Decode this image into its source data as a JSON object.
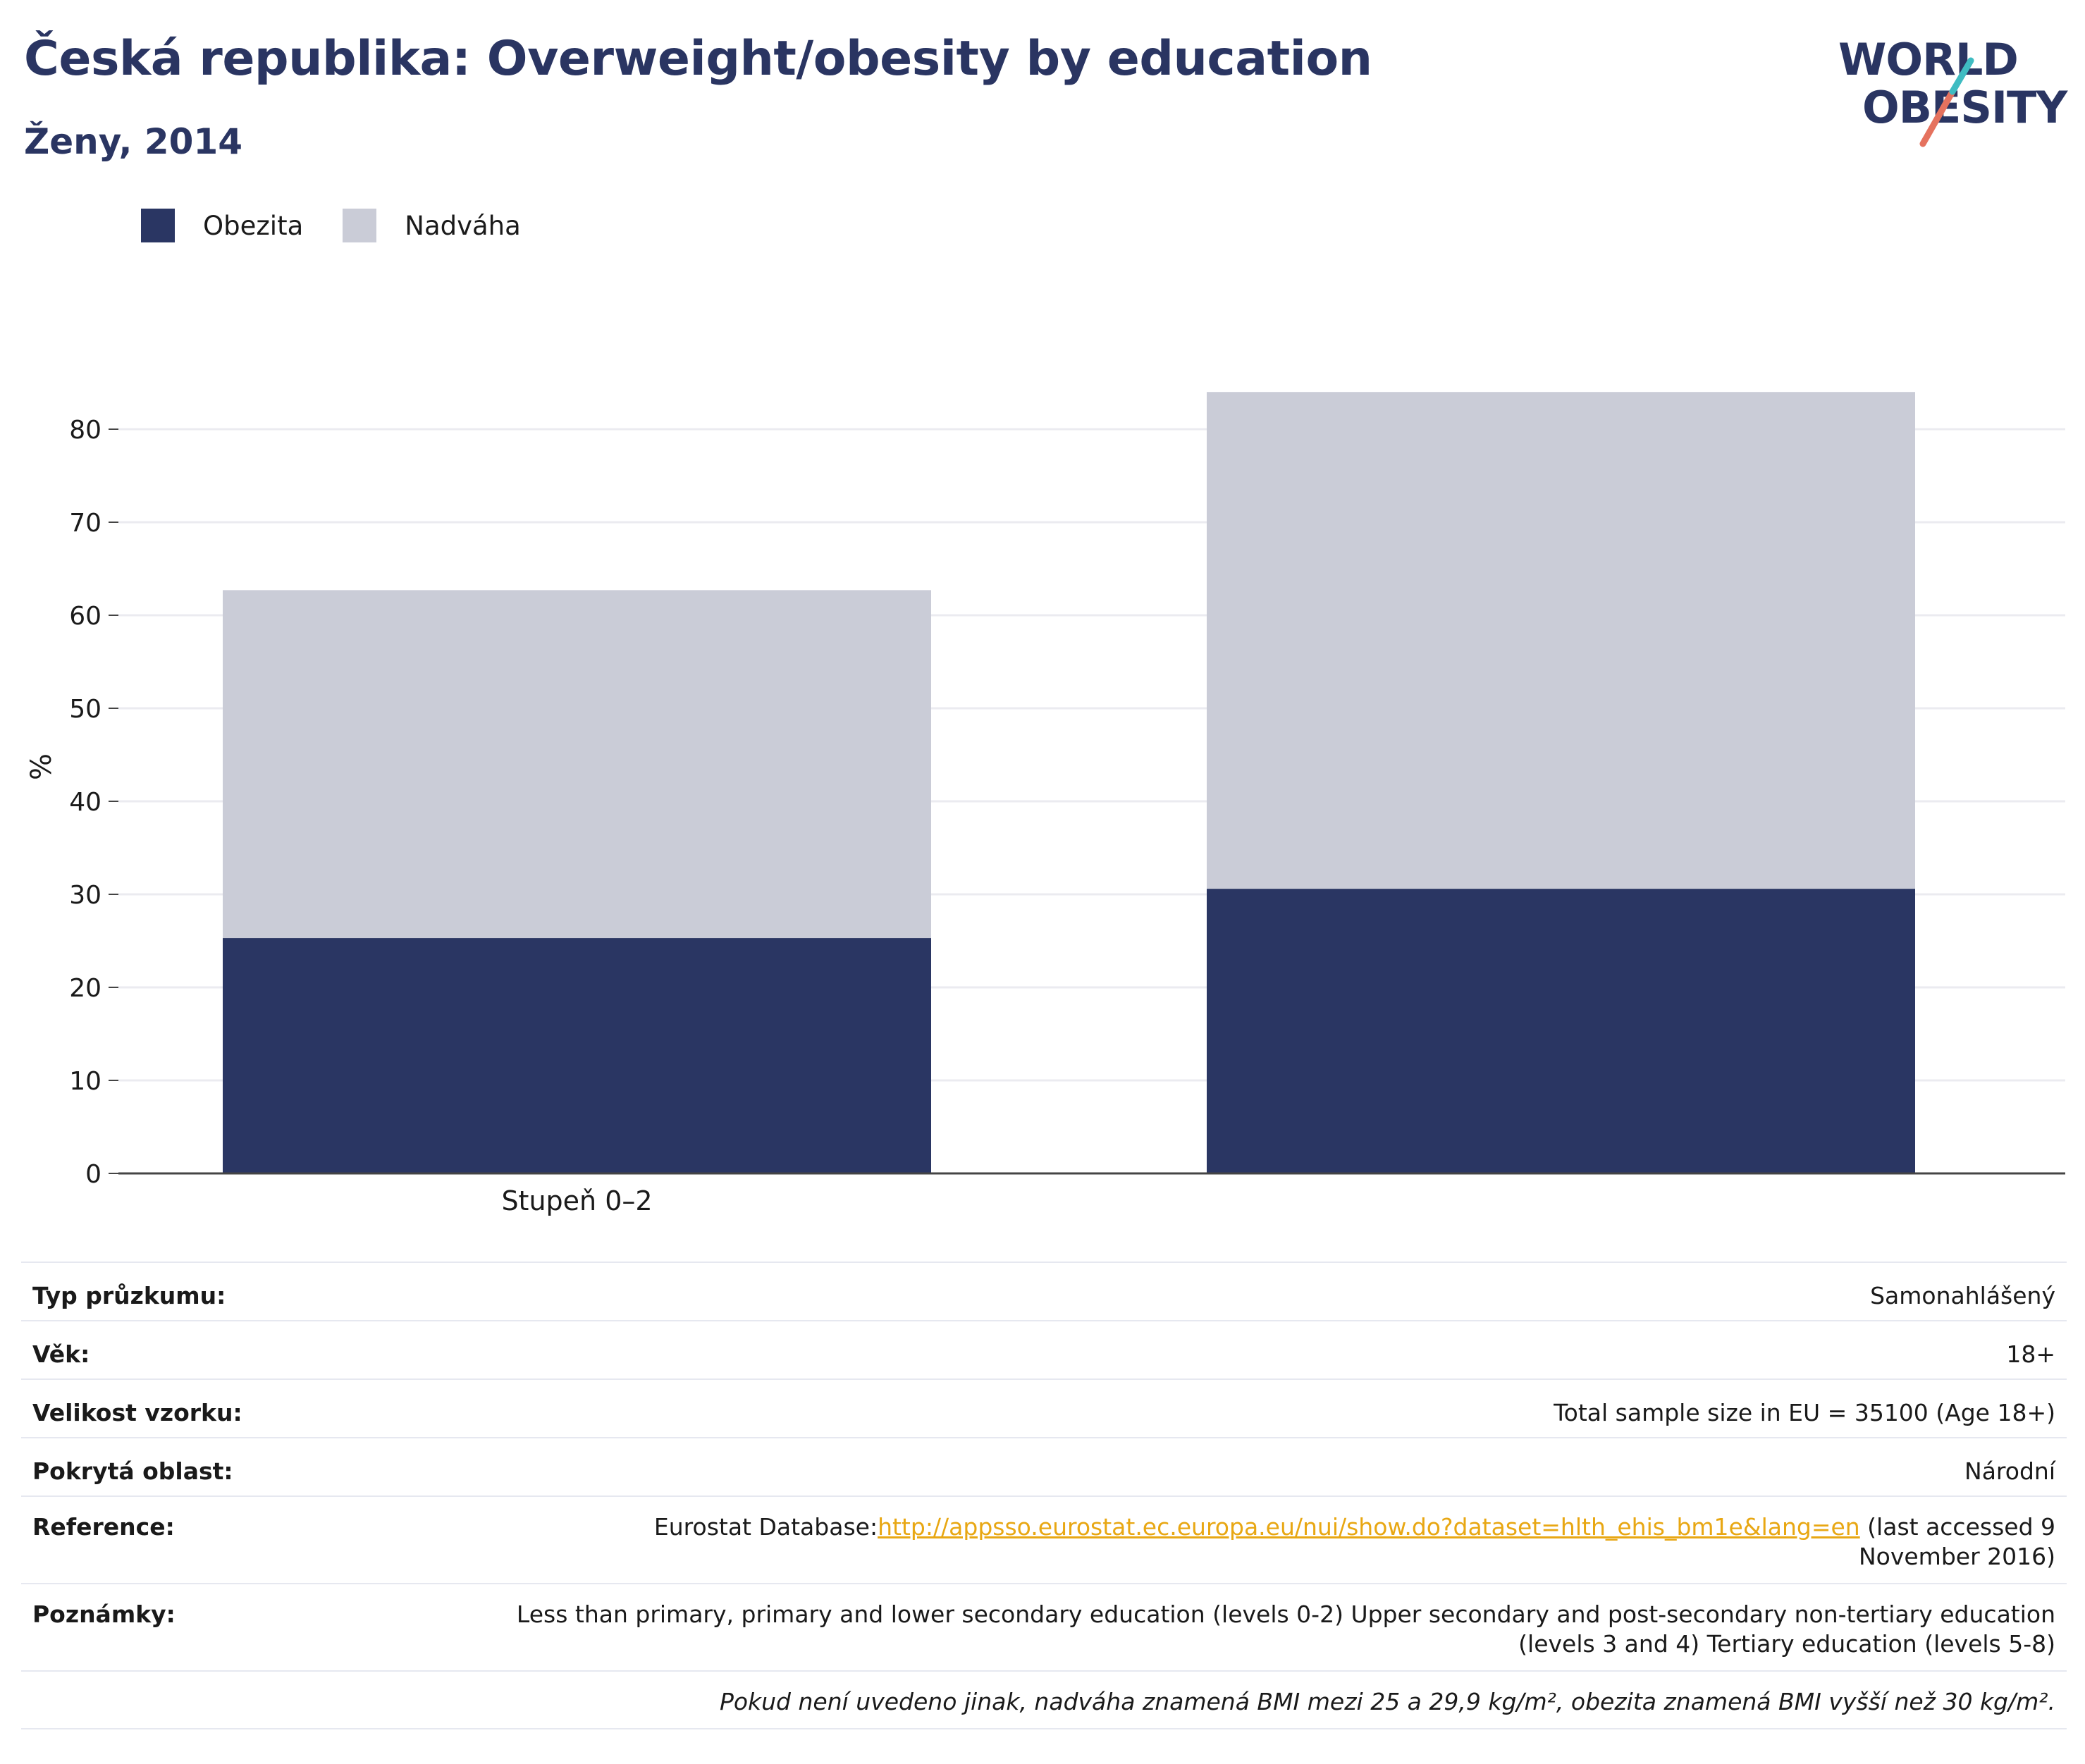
{
  "header": {
    "title": "Česká republika: Overweight/obesity by education",
    "subtitle": "Ženy, 2014"
  },
  "logo": {
    "line1": "WORLD",
    "line2": "OBESITY"
  },
  "colors": {
    "obesity": "#2a3663",
    "overweight": "#caccd7",
    "brand": "#2a3562",
    "logo_teal": "#3fbcc2",
    "logo_coral": "#e5725e",
    "link": "#e8a713"
  },
  "legend": [
    {
      "label": "Obezita",
      "color": "#2a3663"
    },
    {
      "label": "Nadváha",
      "color": "#caccd7"
    }
  ],
  "chart_data": {
    "type": "bar",
    "stacked": true,
    "categories": [
      "Stupeň 0–2",
      ""
    ],
    "series": [
      {
        "name": "Obezita",
        "values": [
          25.3,
          30.6
        ],
        "color": "#2a3663"
      },
      {
        "name": "Nadváha",
        "values": [
          37.4,
          53.4
        ],
        "color": "#caccd7"
      }
    ],
    "ylabel": "%",
    "ylim": [
      0,
      90
    ],
    "yticks": [
      0,
      10,
      20,
      30,
      40,
      50,
      60,
      70,
      80
    ],
    "grid": true,
    "legend_position": "top-left"
  },
  "info": {
    "survey_label": "Typ průzkumu:",
    "survey_value": "Samonahlášený",
    "age_label": "Věk:",
    "age_value": "18+",
    "sample_label": "Velikost vzorku:",
    "sample_value": "Total sample size in EU = 35100 (Age 18+)",
    "area_label": "Pokrytá oblast:",
    "area_value": "Národní",
    "reference_label": "Reference:",
    "reference_prefix": "Eurostat Database:",
    "reference_link": "http://appsso.eurostat.ec.europa.eu/nui/show.do?dataset=hlth_ehis_bm1e&lang=en",
    "reference_suffix": " (last accessed 9 November 2016)",
    "notes_label": "Poznámky:",
    "notes_value": "Less than primary, primary and lower secondary education (levels 0-2) Upper secondary and post-secondary non-tertiary education (levels 3 and 4) Tertiary education (levels 5-8)",
    "footnote": "Pokud není uvedeno jinak, nadváha znamená BMI mezi 25 a 29,9 kg/m², obezita znamená BMI vyšší než 30 kg/m²."
  }
}
